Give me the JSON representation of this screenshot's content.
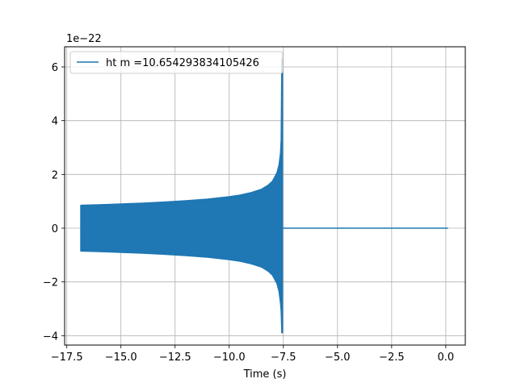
{
  "chart_data": {
    "type": "line",
    "title": "",
    "xlabel": "Time (s)",
    "ylabel": "",
    "offset_label": "1e−22",
    "xlim": [
      -17.6,
      0.9
    ],
    "ylim": [
      -4.35,
      6.75
    ],
    "xticks": [
      -17.5,
      -15.0,
      -12.5,
      -10.0,
      -7.5,
      -5.0,
      -2.5,
      0.0
    ],
    "xtick_labels": [
      "−17.5",
      "−15.0",
      "−12.5",
      "−10.0",
      "−7.5",
      "−5.0",
      "−2.5",
      "0.0"
    ],
    "yticks": [
      -4,
      -2,
      0,
      2,
      4,
      6
    ],
    "ytick_labels": [
      "−4",
      "−2",
      "0",
      "2",
      "4",
      "6"
    ],
    "grid": true,
    "legend_position": "upper-left",
    "series": [
      {
        "name": "ht m =10.654293834105426",
        "color": "#1f77b4",
        "start_time": -16.85,
        "merger_time": -7.55,
        "end_time": 0.1,
        "envelope_upper": [
          [
            -16.85,
            0.85
          ],
          [
            -16.0,
            0.87
          ],
          [
            -15.0,
            0.9
          ],
          [
            -14.0,
            0.93
          ],
          [
            -13.0,
            0.97
          ],
          [
            -12.0,
            1.02
          ],
          [
            -11.0,
            1.08
          ],
          [
            -10.0,
            1.17
          ],
          [
            -9.5,
            1.23
          ],
          [
            -9.0,
            1.32
          ],
          [
            -8.5,
            1.45
          ],
          [
            -8.2,
            1.6
          ],
          [
            -8.0,
            1.75
          ],
          [
            -7.8,
            2.05
          ],
          [
            -7.7,
            2.35
          ],
          [
            -7.63,
            2.8
          ],
          [
            -7.6,
            3.3
          ],
          [
            -7.57,
            6.3
          ]
        ],
        "envelope_lower": [
          [
            -16.85,
            -0.85
          ],
          [
            -16.0,
            -0.87
          ],
          [
            -15.0,
            -0.9
          ],
          [
            -14.0,
            -0.93
          ],
          [
            -13.0,
            -0.97
          ],
          [
            -12.0,
            -1.02
          ],
          [
            -11.0,
            -1.08
          ],
          [
            -10.0,
            -1.17
          ],
          [
            -9.5,
            -1.23
          ],
          [
            -9.0,
            -1.32
          ],
          [
            -8.5,
            -1.45
          ],
          [
            -8.2,
            -1.6
          ],
          [
            -8.0,
            -1.75
          ],
          [
            -7.8,
            -2.05
          ],
          [
            -7.7,
            -2.35
          ],
          [
            -7.63,
            -2.8
          ],
          [
            -7.6,
            -3.1
          ],
          [
            -7.57,
            -3.9
          ]
        ],
        "post_merger_value": 0.0
      }
    ]
  }
}
